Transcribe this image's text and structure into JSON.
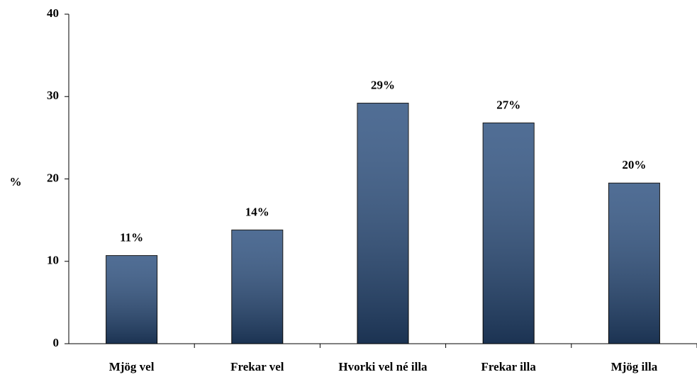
{
  "chart_data": {
    "type": "bar",
    "y_label": "%",
    "categories": [
      "Mjög vel",
      "Frekar vel",
      "Hvorki vel né illa",
      "Frekar illa",
      "Mjög illa"
    ],
    "values": [
      10.7,
      13.8,
      29.2,
      26.8,
      19.5
    ],
    "value_labels": [
      "11%",
      "14%",
      "29%",
      "27%",
      "20%"
    ],
    "color": "#2a4e7e",
    "ylim": [
      0,
      40
    ],
    "yticks": [
      0,
      10,
      20,
      30,
      40
    ],
    "grid": false
  }
}
